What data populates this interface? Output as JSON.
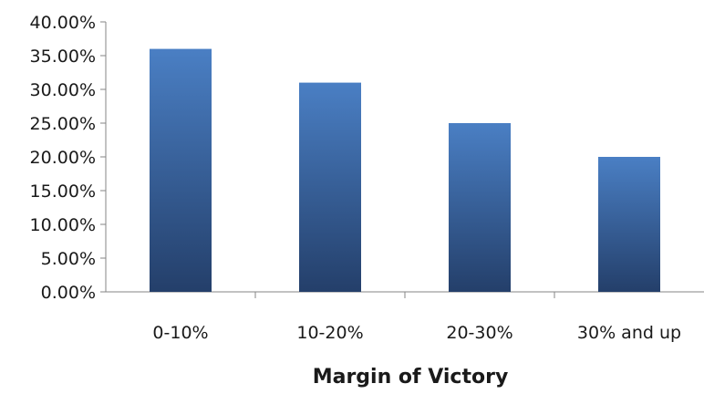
{
  "chart_data": {
    "type": "bar",
    "title": "",
    "xlabel": "Margin of Victory",
    "ylabel": "",
    "categories": [
      "0-10%",
      "10-20%",
      "20-30%",
      "30% and up"
    ],
    "values": [
      36,
      31,
      25,
      20
    ],
    "ylim": [
      0,
      40
    ],
    "y_ticks": [
      0,
      5,
      10,
      15,
      20,
      25,
      30,
      35,
      40
    ],
    "y_tick_labels": [
      "0.00%",
      "5.00%",
      "10.00%",
      "15.00%",
      "20.00%",
      "25.00%",
      "30.00%",
      "35.00%",
      "40.00%"
    ],
    "grid": false,
    "legend": "none",
    "colors": {
      "bar_top": "#4a7fc4",
      "bar_bottom": "#243f6a",
      "axis": "#868686"
    }
  }
}
